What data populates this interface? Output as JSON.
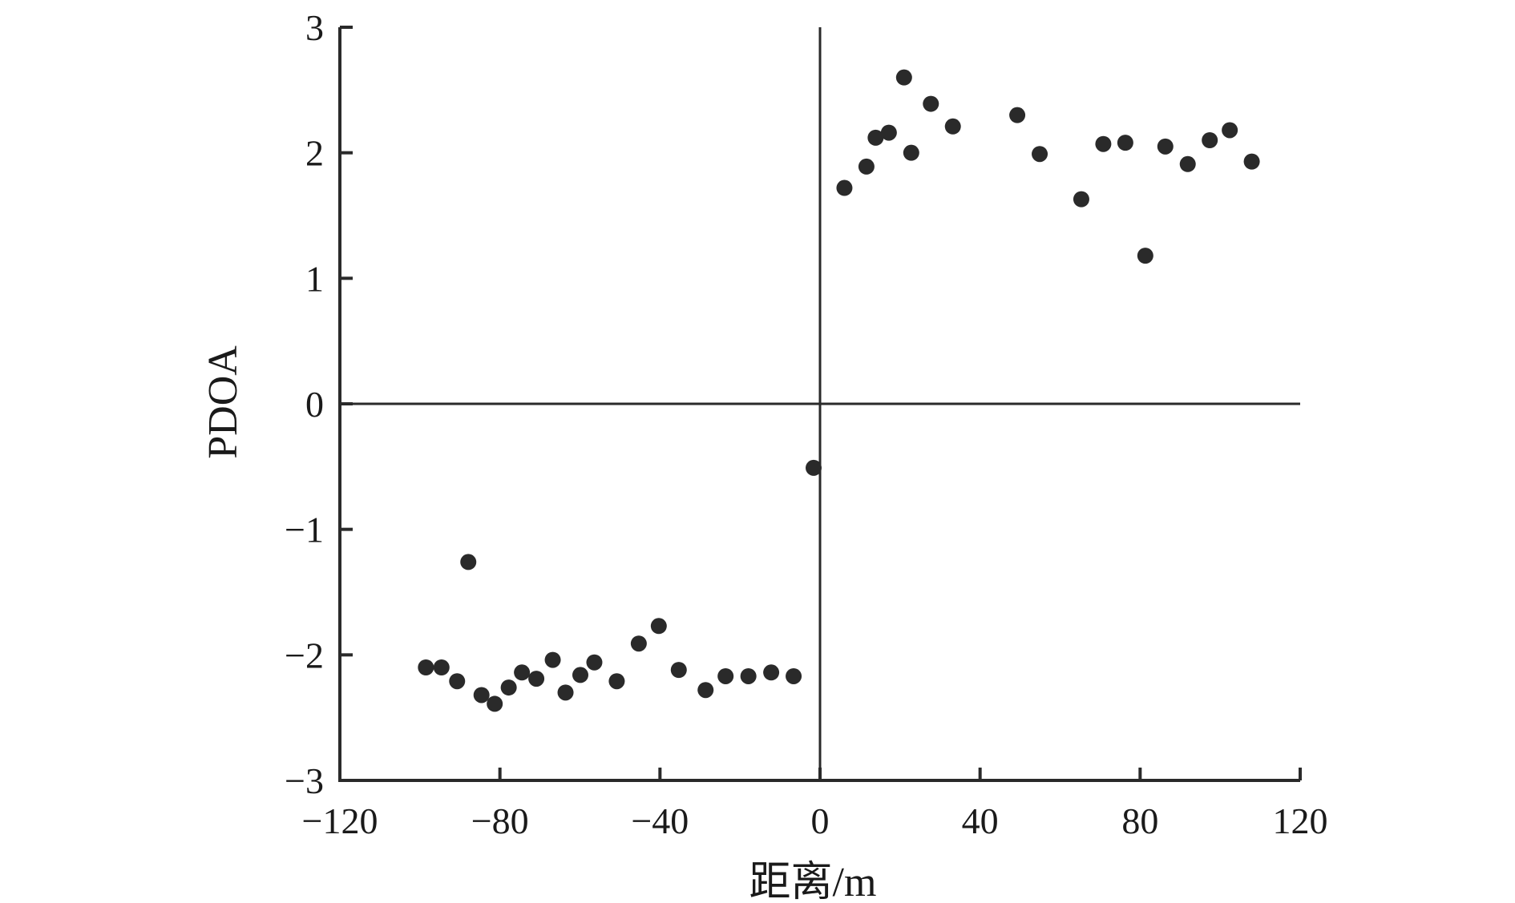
{
  "chart_data": {
    "type": "scatter",
    "xlabel": "距离/m",
    "ylabel": "PDOA",
    "xlim": [
      -120,
      120
    ],
    "ylim": [
      -3,
      3
    ],
    "xticks": [
      -120,
      -80,
      -40,
      0,
      40,
      80,
      120
    ],
    "yticks": [
      -3,
      -2,
      -1,
      0,
      1,
      2,
      3
    ],
    "grid": false,
    "zero_lines": true,
    "marker_color": "#2a2a2a",
    "axis_color": "#2a2a2a",
    "series": [
      {
        "points": [
          {
            "x": -98.5,
            "y": -2.1
          },
          {
            "x": -94.6,
            "y": -2.1
          },
          {
            "x": -90.7,
            "y": -2.21
          },
          {
            "x": -87.9,
            "y": -1.26
          },
          {
            "x": -84.6,
            "y": -2.32
          },
          {
            "x": -81.3,
            "y": -2.39
          },
          {
            "x": -77.8,
            "y": -2.26
          },
          {
            "x": -74.5,
            "y": -2.14
          },
          {
            "x": -70.9,
            "y": -2.19
          },
          {
            "x": -66.8,
            "y": -2.04
          },
          {
            "x": -63.6,
            "y": -2.3
          },
          {
            "x": -59.9,
            "y": -2.16
          },
          {
            "x": -56.4,
            "y": -2.06
          },
          {
            "x": -50.8,
            "y": -2.21
          },
          {
            "x": -45.3,
            "y": -1.91
          },
          {
            "x": -40.3,
            "y": -1.77
          },
          {
            "x": -35.3,
            "y": -2.12
          },
          {
            "x": -28.6,
            "y": -2.28
          },
          {
            "x": -23.6,
            "y": -2.17
          },
          {
            "x": -17.9,
            "y": -2.17
          },
          {
            "x": -12.2,
            "y": -2.14
          },
          {
            "x": -6.6,
            "y": -2.17
          },
          {
            "x": -1.6,
            "y": -0.51
          },
          {
            "x": 6.1,
            "y": 1.72
          },
          {
            "x": 11.6,
            "y": 1.89
          },
          {
            "x": 13.9,
            "y": 2.12
          },
          {
            "x": 17.2,
            "y": 2.16
          },
          {
            "x": 21.0,
            "y": 2.6
          },
          {
            "x": 22.8,
            "y": 2.0
          },
          {
            "x": 27.7,
            "y": 2.39
          },
          {
            "x": 33.2,
            "y": 2.21
          },
          {
            "x": 49.3,
            "y": 2.3
          },
          {
            "x": 54.9,
            "y": 1.99
          },
          {
            "x": 65.3,
            "y": 1.63
          },
          {
            "x": 70.8,
            "y": 2.07
          },
          {
            "x": 76.3,
            "y": 2.08
          },
          {
            "x": 81.3,
            "y": 1.18
          },
          {
            "x": 86.3,
            "y": 2.05
          },
          {
            "x": 91.9,
            "y": 1.91
          },
          {
            "x": 97.4,
            "y": 2.1
          },
          {
            "x": 102.4,
            "y": 2.18
          },
          {
            "x": 107.9,
            "y": 1.93
          }
        ]
      }
    ]
  }
}
